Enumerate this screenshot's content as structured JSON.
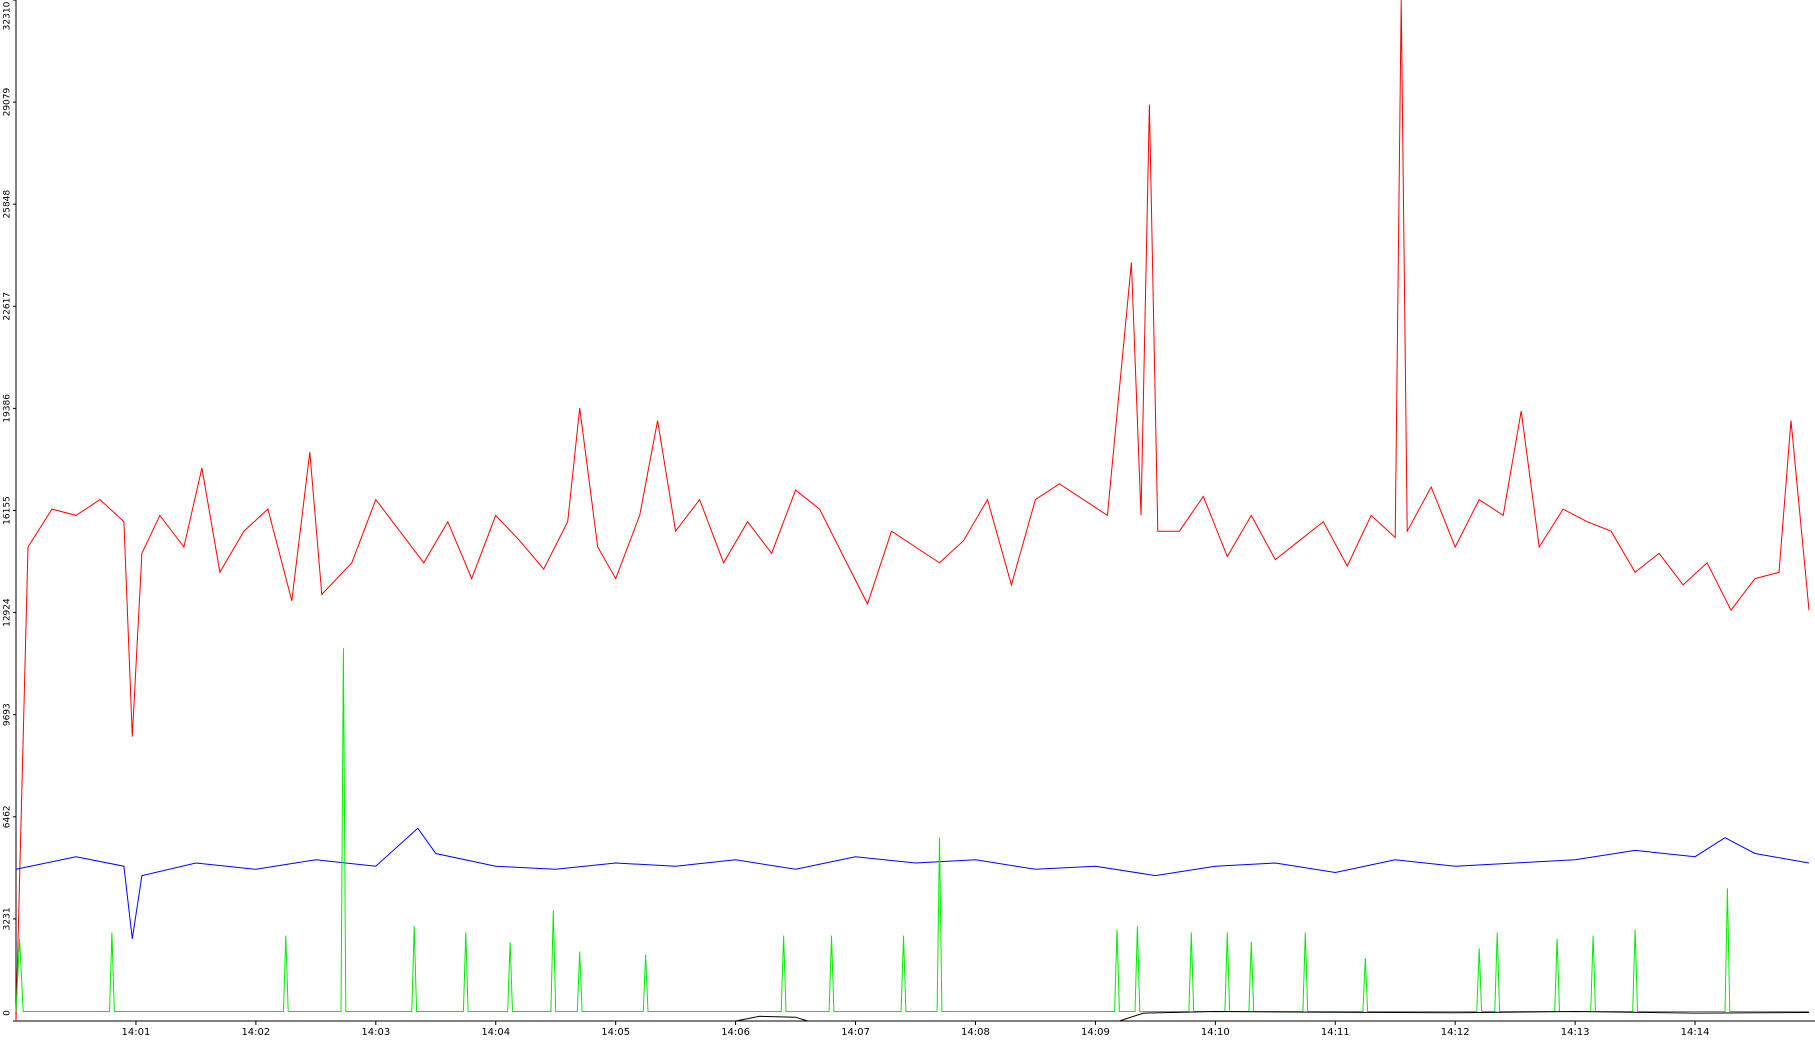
{
  "chart_data": {
    "type": "line",
    "xlim": [
      840,
      855
    ],
    "xticks": [
      {
        "value": 841,
        "label": "14:01"
      },
      {
        "value": 842,
        "label": "14:02"
      },
      {
        "value": 843,
        "label": "14:03"
      },
      {
        "value": 844,
        "label": "14:04"
      },
      {
        "value": 845,
        "label": "14:05"
      },
      {
        "value": 846,
        "label": "14:06"
      },
      {
        "value": 847,
        "label": "14:07"
      },
      {
        "value": 848,
        "label": "14:08"
      },
      {
        "value": 849,
        "label": "14:09"
      },
      {
        "value": 850,
        "label": "14:10"
      },
      {
        "value": 851,
        "label": "14:11"
      },
      {
        "value": 852,
        "label": "14:12"
      },
      {
        "value": 853,
        "label": "14:13"
      },
      {
        "value": 854,
        "label": "14:14"
      }
    ],
    "ylim": [
      0,
      32310
    ],
    "yticks": [
      0,
      3231,
      6462,
      9693,
      12924,
      16155,
      19386,
      22617,
      25848,
      29079,
      32310
    ],
    "series": [
      {
        "color": "#ff0000",
        "x": [
          840.0,
          840.1,
          840.3,
          840.5,
          840.7,
          840.9,
          840.97,
          841.05,
          841.2,
          841.4,
          841.55,
          841.7,
          841.9,
          842.1,
          842.3,
          842.45,
          842.55,
          842.8,
          843.0,
          843.2,
          843.4,
          843.6,
          843.8,
          844.0,
          844.2,
          844.4,
          844.6,
          844.7,
          844.85,
          845.0,
          845.2,
          845.35,
          845.5,
          845.7,
          845.9,
          846.1,
          846.3,
          846.5,
          846.7,
          846.9,
          847.1,
          847.3,
          847.5,
          847.7,
          847.9,
          848.1,
          848.3,
          848.5,
          848.7,
          848.9,
          849.1,
          849.3,
          849.38,
          849.45,
          849.52,
          849.7,
          849.9,
          850.1,
          850.3,
          850.5,
          850.7,
          850.9,
          851.1,
          851.3,
          851.5,
          851.55,
          851.6,
          851.8,
          852.0,
          852.2,
          852.4,
          852.55,
          852.7,
          852.9,
          853.1,
          853.3,
          853.5,
          853.7,
          853.9,
          854.1,
          854.3,
          854.5,
          854.7,
          854.8,
          854.95
        ],
        "values": [
          0,
          15000,
          16200,
          16000,
          16500,
          15800,
          9000,
          14800,
          16000,
          15000,
          17500,
          14200,
          15500,
          16200,
          13300,
          18000,
          13500,
          14500,
          16500,
          15500,
          14500,
          15800,
          14000,
          16000,
          15200,
          14300,
          15800,
          19400,
          15000,
          14000,
          16000,
          19000,
          15500,
          16500,
          14500,
          15800,
          14800,
          16800,
          16200,
          14700,
          13200,
          15500,
          15000,
          14500,
          15200,
          16500,
          13800,
          16500,
          17000,
          16500,
          16000,
          24000,
          16000,
          29000,
          15500,
          15500,
          16600,
          14700,
          16000,
          14600,
          15200,
          15800,
          14400,
          16000,
          15300,
          32310,
          15500,
          16900,
          15000,
          16500,
          16000,
          19300,
          15000,
          16200,
          15800,
          15500,
          14200,
          14800,
          13800,
          14500,
          13000,
          14000,
          14200,
          19000,
          13000
        ]
      },
      {
        "color": "#0000ff",
        "x": [
          840.0,
          840.5,
          840.9,
          840.97,
          841.05,
          841.5,
          842.0,
          842.5,
          843.0,
          843.35,
          843.5,
          844.0,
          844.5,
          845.0,
          845.5,
          846.0,
          846.5,
          847.0,
          847.5,
          848.0,
          848.5,
          849.0,
          849.5,
          850.0,
          850.5,
          851.0,
          851.5,
          852.0,
          852.5,
          853.0,
          853.5,
          854.0,
          854.25,
          854.5,
          854.95
        ],
        "values": [
          4800,
          5200,
          4900,
          2600,
          4600,
          5000,
          4800,
          5100,
          4900,
          6100,
          5300,
          4900,
          4800,
          5000,
          4900,
          5100,
          4800,
          5200,
          5000,
          5100,
          4800,
          4900,
          4600,
          4900,
          5000,
          4700,
          5100,
          4900,
          5000,
          5100,
          5400,
          5200,
          5800,
          5300,
          5000
        ]
      },
      {
        "color": "#00ee00",
        "x": [
          840.0,
          840.03,
          840.06,
          840.78,
          840.8,
          840.82,
          842.23,
          842.25,
          842.27,
          842.71,
          842.73,
          842.75,
          843.3,
          843.32,
          843.34,
          843.73,
          843.75,
          843.77,
          844.1,
          844.12,
          844.14,
          844.46,
          844.48,
          844.5,
          844.68,
          844.7,
          844.72,
          845.23,
          845.25,
          845.27,
          846.38,
          846.4,
          846.42,
          846.78,
          846.8,
          846.82,
          847.38,
          847.4,
          847.42,
          847.68,
          847.7,
          847.72,
          849.16,
          849.18,
          849.2,
          849.33,
          849.35,
          849.37,
          849.78,
          849.8,
          849.82,
          850.08,
          850.1,
          850.12,
          850.28,
          850.3,
          850.32,
          850.73,
          850.75,
          850.77,
          851.23,
          851.25,
          851.27,
          852.18,
          852.2,
          852.22,
          852.33,
          852.35,
          852.37,
          852.83,
          852.85,
          852.87,
          853.13,
          853.15,
          853.17,
          853.48,
          853.5,
          853.52,
          854.25,
          854.27,
          854.29,
          854.95
        ],
        "values": [
          300,
          2600,
          300,
          300,
          2800,
          300,
          300,
          2700,
          300,
          300,
          11800,
          300,
          300,
          3000,
          300,
          300,
          2800,
          300,
          300,
          2500,
          300,
          300,
          3500,
          300,
          300,
          2200,
          300,
          300,
          2100,
          300,
          300,
          2700,
          300,
          300,
          2700,
          300,
          300,
          2700,
          300,
          300,
          5800,
          300,
          300,
          2900,
          300,
          300,
          3000,
          300,
          300,
          2800,
          300,
          300,
          2800,
          300,
          300,
          2500,
          300,
          300,
          2800,
          300,
          300,
          2000,
          300,
          300,
          2300,
          300,
          300,
          2800,
          300,
          300,
          2600,
          300,
          300,
          2700,
          300,
          300,
          2900,
          300,
          300,
          4200,
          300,
          300
        ]
      },
      {
        "color": "#000000",
        "x": [
          846.0,
          846.2,
          846.5,
          846.6,
          849.2,
          849.4,
          850.0,
          851.0,
          852.0,
          853.0,
          854.0,
          854.95
        ],
        "values": [
          0,
          150,
          120,
          0,
          0,
          250,
          300,
          280,
          260,
          300,
          250,
          270
        ]
      }
    ]
  }
}
